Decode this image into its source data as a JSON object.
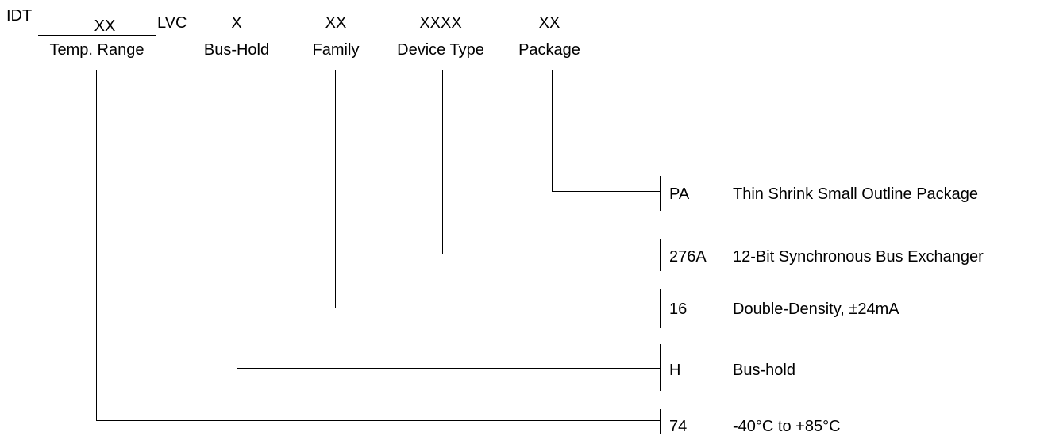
{
  "prefix": "IDT",
  "fields": [
    {
      "code": "XX",
      "label": "Temp. Range"
    },
    {
      "code": "X",
      "label": "Bus-Hold"
    },
    {
      "code": "XX",
      "label": "Family"
    },
    {
      "code": "XXXX",
      "label": "Device Type"
    },
    {
      "code": "XX",
      "label": "Package"
    }
  ],
  "separator": "LVC",
  "options": [
    {
      "code": "PA",
      "description": "Thin Shrink Small Outline Package"
    },
    {
      "code": "276A",
      "description": "12-Bit Synchronous Bus Exchanger"
    },
    {
      "code": "16",
      "description": "Double-Density, ±24mA"
    },
    {
      "code": "H",
      "description": "Bus-hold"
    },
    {
      "code": "74",
      "description": "-40°C to +85°C"
    }
  ]
}
